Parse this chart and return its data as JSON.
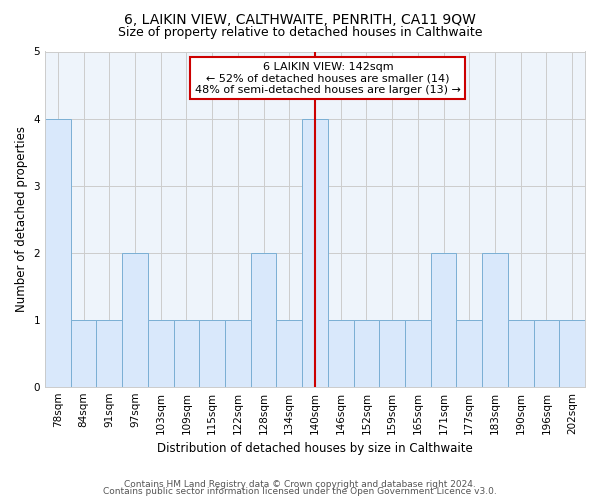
{
  "title": "6, LAIKIN VIEW, CALTHWAITE, PENRITH, CA11 9QW",
  "subtitle": "Size of property relative to detached houses in Calthwaite",
  "xlabel": "Distribution of detached houses by size in Calthwaite",
  "ylabel": "Number of detached properties",
  "bar_labels": [
    "78sqm",
    "84sqm",
    "91sqm",
    "97sqm",
    "103sqm",
    "109sqm",
    "115sqm",
    "122sqm",
    "128sqm",
    "134sqm",
    "140sqm",
    "146sqm",
    "152sqm",
    "159sqm",
    "165sqm",
    "171sqm",
    "177sqm",
    "183sqm",
    "190sqm",
    "196sqm",
    "202sqm"
  ],
  "bar_values": [
    4,
    1,
    1,
    2,
    1,
    1,
    1,
    1,
    2,
    1,
    4,
    1,
    1,
    1,
    1,
    2,
    1,
    2,
    1,
    1,
    1
  ],
  "bar_color": "#d9e8fb",
  "bar_edge_color": "#7bafd4",
  "highlight_index": 10,
  "highlight_line_color": "#cc0000",
  "annotation_text": "6 LAIKIN VIEW: 142sqm\n← 52% of detached houses are smaller (14)\n48% of semi-detached houses are larger (13) →",
  "annotation_box_color": "#ffffff",
  "annotation_box_edge_color": "#cc0000",
  "ylim": [
    0,
    5
  ],
  "yticks": [
    0,
    1,
    2,
    3,
    4,
    5
  ],
  "grid_color": "#cccccc",
  "background_color": "#ffffff",
  "plot_bg_color": "#eef4fb",
  "footer_line1": "Contains HM Land Registry data © Crown copyright and database right 2024.",
  "footer_line2": "Contains public sector information licensed under the Open Government Licence v3.0.",
  "title_fontsize": 10,
  "subtitle_fontsize": 9,
  "xlabel_fontsize": 8.5,
  "ylabel_fontsize": 8.5,
  "tick_fontsize": 7.5,
  "annotation_fontsize": 8,
  "footer_fontsize": 6.5
}
